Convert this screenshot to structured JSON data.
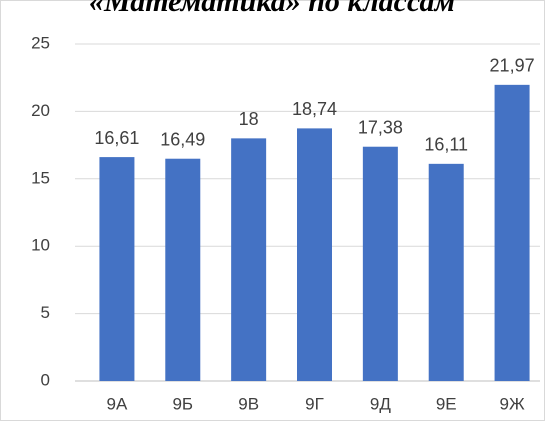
{
  "chart_data": {
    "type": "bar",
    "title": "«Математика» по классам",
    "categories": [
      "9А",
      "9Б",
      "9В",
      "9Г",
      "9Д",
      "9Е",
      "9Ж"
    ],
    "values": [
      16.61,
      16.49,
      18,
      18.74,
      17.38,
      16.11,
      21.97
    ],
    "value_labels": [
      "16,61",
      "16,49",
      "18",
      "18,74",
      "17,38",
      "16,11",
      "21,97"
    ],
    "color": "#4472c4",
    "ylim": [
      0,
      25
    ],
    "yticks": [
      0,
      5,
      10,
      15,
      20,
      25
    ],
    "grid": true
  }
}
